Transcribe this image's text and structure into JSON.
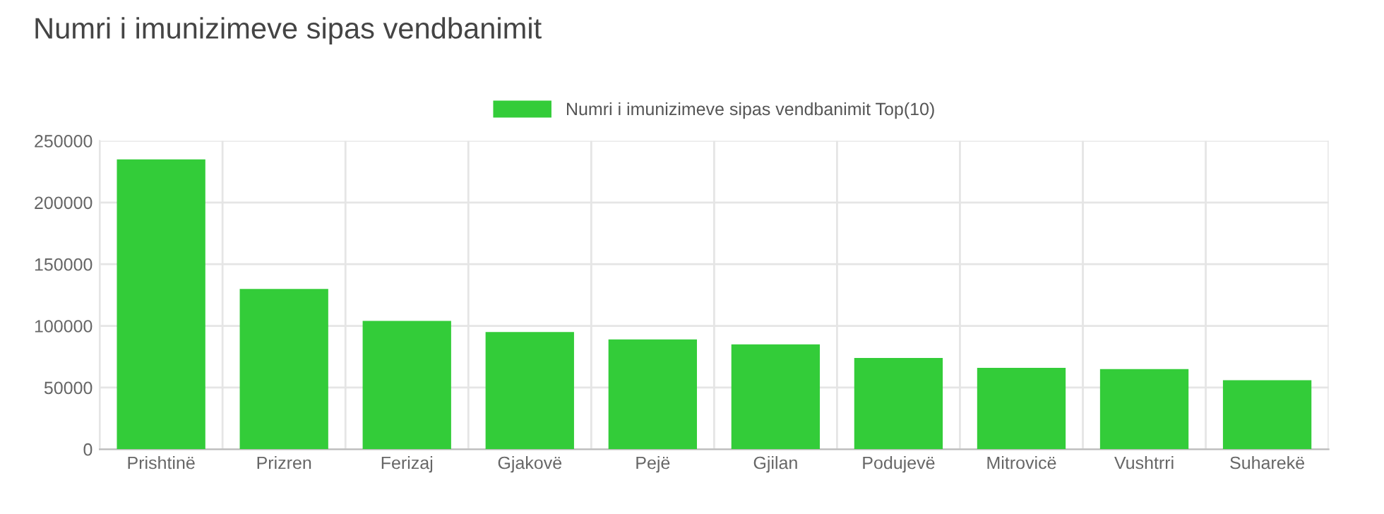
{
  "chart_data": {
    "type": "bar",
    "title": "Numri i imunizimeve sipas vendbanimit",
    "categories": [
      "Prishtinë",
      "Prizren",
      "Ferizaj",
      "Gjakovë",
      "Pejë",
      "Gjilan",
      "Podujevë",
      "Mitrovicë",
      "Vushtrri",
      "Suharekë"
    ],
    "series": [
      {
        "name": "Numri i imunizimeve sipas vendbanimit Top(10)",
        "color": "#33cc39",
        "values": [
          235000,
          130000,
          104000,
          95000,
          89000,
          85000,
          74000,
          66000,
          65000,
          56000
        ]
      }
    ],
    "ylim": [
      0,
      250000
    ],
    "yticks": [
      0,
      50000,
      100000,
      150000,
      200000,
      250000
    ],
    "grid": true,
    "legend": "top"
  }
}
